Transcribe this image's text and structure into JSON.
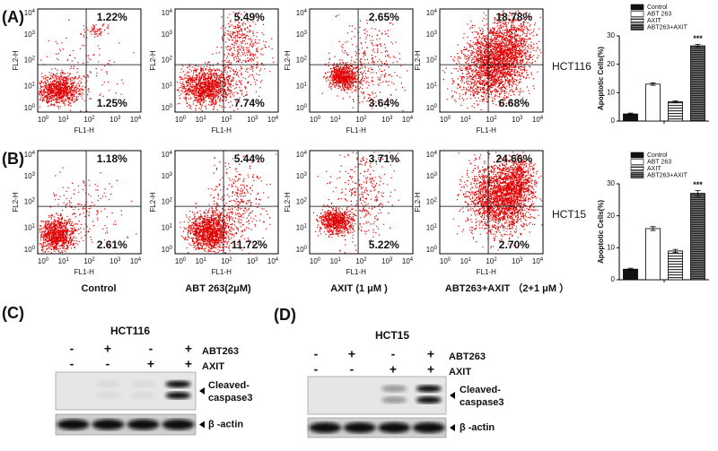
{
  "panels": [
    {
      "label": "(A)",
      "cell_line": "HCT116",
      "flow_plots": [
        {
          "upper_right": "1.22%",
          "lower_right": "1.25%"
        },
        {
          "upper_right": "5.49%",
          "lower_right": "7.74%"
        },
        {
          "upper_right": "2.65%",
          "lower_right": "3.64%"
        },
        {
          "upper_right": "18.78%",
          "lower_right": "6.68%"
        }
      ],
      "bar_chart": {
        "type": "bar",
        "y_label": "Apoptotic Cells(%)",
        "ylim": [
          0,
          30
        ],
        "yticks": [
          0,
          10,
          20,
          30
        ],
        "series": [
          {
            "name": "Control",
            "value": 2.5,
            "error": 0.3
          },
          {
            "name": "ABT 263",
            "value": 13,
            "error": 0.4
          },
          {
            "name": "AXIT",
            "value": 6.8,
            "error": 0.3
          },
          {
            "name": "ABT263+AXIT",
            "value": 26.5,
            "error": 0.5
          }
        ],
        "annotation": "***"
      }
    },
    {
      "label": "(B)",
      "cell_line": "HCT15",
      "flow_plots": [
        {
          "upper_right": "1.18%",
          "lower_right": "2.61%"
        },
        {
          "upper_right": "5.44%",
          "lower_right": "11.72%"
        },
        {
          "upper_right": "3.71%",
          "lower_right": "5.22%"
        },
        {
          "upper_right": "24.66%",
          "lower_right": "2.70%"
        }
      ],
      "bar_chart": {
        "type": "bar",
        "y_label": "Apoptotic Cells(%)",
        "ylim": [
          0,
          30
        ],
        "yticks": [
          0,
          10,
          20,
          30
        ],
        "series": [
          {
            "name": "Control",
            "value": 3.3,
            "error": 0.3
          },
          {
            "name": "ABT 263",
            "value": 16,
            "error": 0.6
          },
          {
            "name": "AXIT",
            "value": 9,
            "error": 0.5
          },
          {
            "name": "ABT263+AXIT",
            "value": 27,
            "error": 0.9
          }
        ],
        "annotation": "***"
      }
    }
  ],
  "flow_axes": {
    "x_label": "FL1-H",
    "y_label": "FL2-H",
    "ticks": [
      {
        "base": "10",
        "exp": "0"
      },
      {
        "base": "10",
        "exp": "1"
      },
      {
        "base": "10",
        "exp": "2"
      },
      {
        "base": "10",
        "exp": "3"
      },
      {
        "base": "10",
        "exp": "4"
      }
    ]
  },
  "treatments": [
    "Control",
    "ABT 263(2μM)",
    "AXIT (1 μM )",
    "ABT263+AXIT （2+1 μM ）"
  ],
  "blots": [
    {
      "label": "(C)",
      "cell_line": "HCT116",
      "rows": [
        {
          "name": "ABT263",
          "signs": [
            "-",
            "+",
            "-",
            "+"
          ]
        },
        {
          "name": "AXIT",
          "signs": [
            "-",
            "-",
            "+",
            "+"
          ]
        }
      ],
      "target": [
        "Cleaved-",
        "caspase3"
      ],
      "loading_control": "β -actin"
    },
    {
      "label": "(D)",
      "cell_line": "HCT15",
      "rows": [
        {
          "name": "ABT263",
          "signs": [
            "-",
            "+",
            "-",
            "+"
          ]
        },
        {
          "name": "AXIT",
          "signs": [
            "-",
            "-",
            "+",
            "+"
          ]
        }
      ],
      "target": [
        "Cleaved-",
        "caspase3"
      ],
      "loading_control": "β -actin"
    }
  ]
}
